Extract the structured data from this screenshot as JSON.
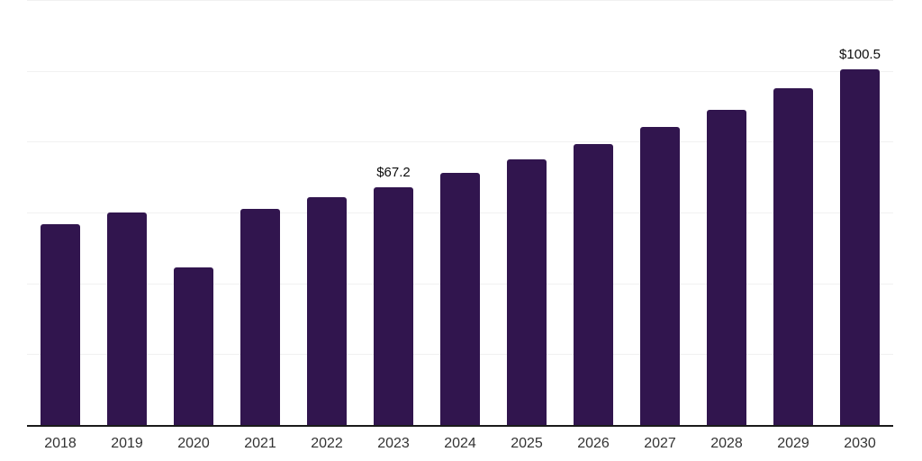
{
  "chart_data": {
    "type": "bar",
    "title": "",
    "categories": [
      "2018",
      "2019",
      "2020",
      "2021",
      "2022",
      "2023",
      "2024",
      "2025",
      "2026",
      "2027",
      "2028",
      "2029",
      "2030"
    ],
    "values": [
      56.8,
      60.1,
      44.5,
      61.0,
      64.2,
      67.2,
      71.1,
      75.0,
      79.2,
      84.1,
      89.0,
      95.0,
      100.5
    ],
    "point_labels": [
      "",
      "",
      "",
      "",
      "",
      "$67.2",
      "",
      "",
      "",
      "",
      "",
      "",
      "$100.5"
    ],
    "xlabel": "",
    "ylabel": "",
    "ylim": [
      0,
      120
    ],
    "gridline_step": 20,
    "grid": true,
    "legend_position": "none",
    "colors": {
      "bar": "#31154E",
      "axis": "#1a1a1a",
      "gridline": "#f1f1f1",
      "tick_label": "#333333",
      "value_label": "#0d0d0d",
      "background": "#ffffff"
    }
  }
}
